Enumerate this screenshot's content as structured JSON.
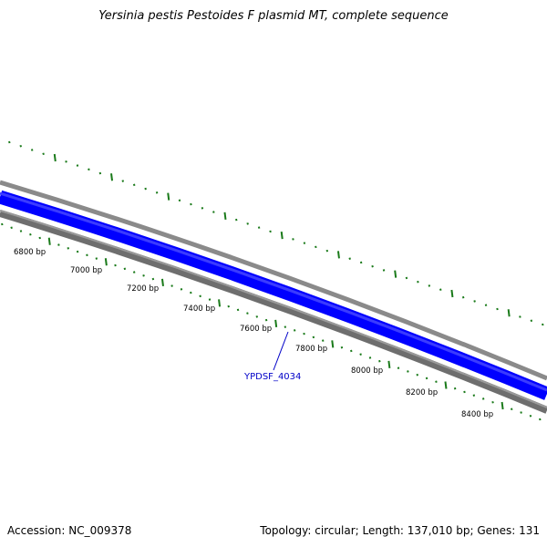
{
  "title": "Yersinia pestis Pestoides F plasmid MT, complete sequence",
  "footer": {
    "accession": "Accession: NC_009378",
    "summary": "Topology: circular; Length: 137,010 bp; Genes: 131"
  },
  "colors": {
    "cds_track": "#0000ff",
    "backbone_outer": "#8a8a8a",
    "backbone_inner": "#6e6e6e",
    "tick_green": "#1a7a1a",
    "gene_label": "#0000c8"
  },
  "ruler": {
    "labels": [
      "6800 bp",
      "7000 bp",
      "7200 bp",
      "7400 bp",
      "7600 bp",
      "7800 bp",
      "8000 bp",
      "8200 bp",
      "8400 bp"
    ]
  },
  "gene": {
    "name": "YPDSF_4034"
  }
}
